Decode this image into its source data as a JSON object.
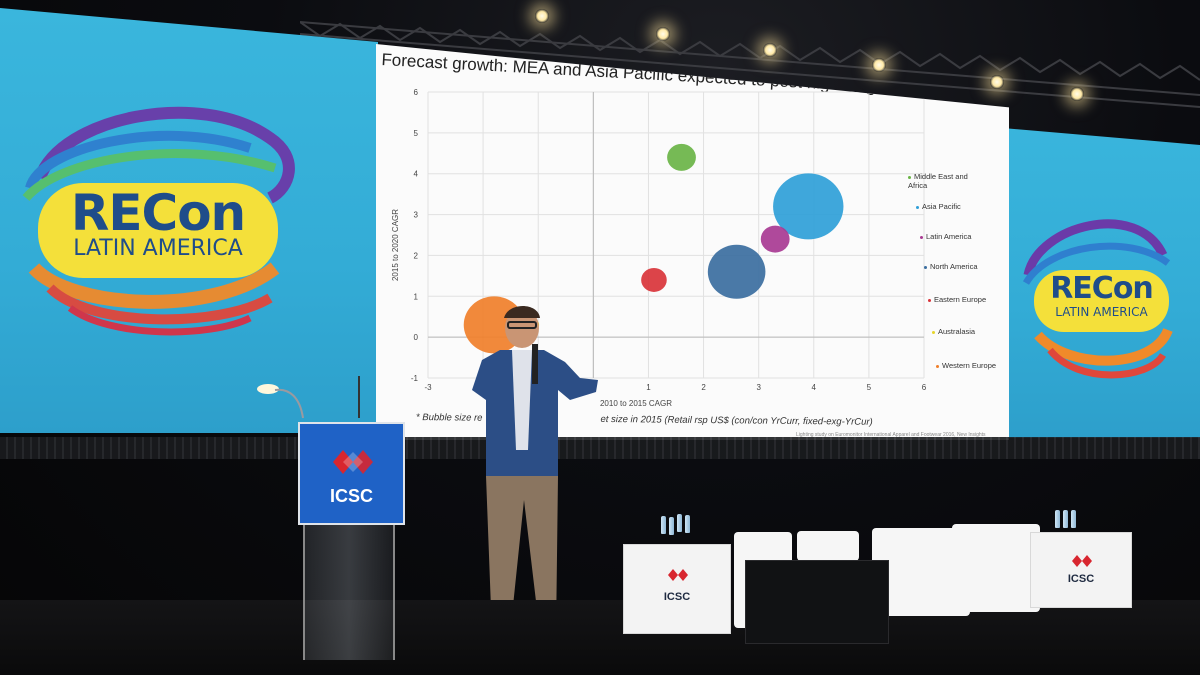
{
  "slide": {
    "title": "Forecast growth: MEA and Asia Pacific expected to post highest growth",
    "footnote": "* Bubble size re",
    "footnote_tail": "et size in 2015 (Retail rsp US$ (con/con YrCurr, fixed-exg-YrCur)",
    "source": "Lighting study on Euromonitor International Apparel and Footwear 2016, New Insights"
  },
  "chart_data": {
    "type": "scatter",
    "xlabel": "2010 to 2015 CAGR",
    "ylabel": "2015 to 2020 CAGR",
    "xlim": [
      -3,
      6
    ],
    "ylim": [
      -1,
      6
    ],
    "x_ticks": [
      "-3",
      "0",
      "1",
      "2",
      "3",
      "4",
      "5",
      "6"
    ],
    "y_ticks": [
      "6",
      "5",
      "4",
      "3",
      "2",
      "1",
      "0",
      "-1"
    ],
    "legend_placement": "right",
    "series": [
      {
        "name": "Middle East and Africa",
        "x": 1.6,
        "y": 4.4,
        "color": "#6ab446",
        "size": 0.9
      },
      {
        "name": "Asia Pacific",
        "x": 3.9,
        "y": 3.2,
        "color": "#2f9fd8",
        "size": 2.2
      },
      {
        "name": "Latin America",
        "x": 3.3,
        "y": 2.4,
        "color": "#a83a92",
        "size": 0.9
      },
      {
        "name": "North America",
        "x": 2.6,
        "y": 1.6,
        "color": "#3b6ea0",
        "size": 1.8
      },
      {
        "name": "Eastern Europe",
        "x": 1.1,
        "y": 1.4,
        "color": "#d9343a",
        "size": 0.8
      },
      {
        "name": "Australasia",
        "x": -1.1,
        "y": 0.3,
        "color": "#e6d52a",
        "size": 0.4
      },
      {
        "name": "Western Europe",
        "x": -1.8,
        "y": 0.3,
        "color": "#f07f2a",
        "size": 1.9
      }
    ]
  },
  "logos": {
    "recon_main": "RECon",
    "recon_sub": "LATIN AMERICA",
    "icsc": "ICSC"
  },
  "colors": {
    "screen_blue": "#36b0d9",
    "podium_blue": "#1f62c6",
    "brand_red": "#d8262f"
  }
}
